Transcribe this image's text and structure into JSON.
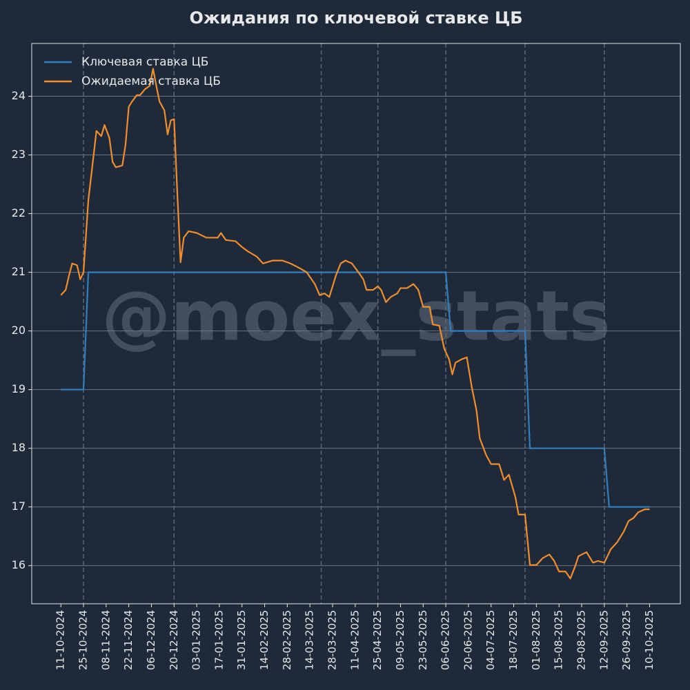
{
  "chart_data": {
    "type": "line",
    "title": "Ожидания по ключевой ставке ЦБ",
    "watermark": "@moex_stats",
    "legend": "upper left",
    "grid": true,
    "xlim": [
      "23-09-2024",
      "29-10-2025"
    ],
    "ylim": [
      15.35,
      24.9
    ],
    "yticks": [
      16,
      17,
      18,
      19,
      20,
      21,
      22,
      23,
      24
    ],
    "xticks": [
      "11-10-2024",
      "25-10-2024",
      "08-11-2024",
      "22-11-2024",
      "06-12-2024",
      "20-12-2024",
      "03-01-2025",
      "17-01-2025",
      "31-01-2025",
      "14-02-2025",
      "28-02-2025",
      "14-03-2025",
      "28-03-2025",
      "11-04-2025",
      "25-04-2025",
      "09-05-2025",
      "23-05-2025",
      "06-06-2025",
      "20-06-2025",
      "04-07-2025",
      "18-07-2025",
      "01-08-2025",
      "15-08-2025",
      "29-08-2025",
      "12-09-2025",
      "26-09-2025",
      "10-10-2025"
    ],
    "vlines": [
      "25-10-2024",
      "20-12-2024",
      "21-03-2025",
      "25-04-2025",
      "06-06-2025",
      "25-07-2025",
      "12-09-2025"
    ],
    "series": [
      {
        "name": "Ключевая ставка ЦБ",
        "color": "#2f7fc1",
        "x": [
          "11-10-2024",
          "25-10-2024",
          "28-10-2024",
          "06-06-2025",
          "09-06-2025",
          "25-07-2025",
          "28-07-2025",
          "12-09-2025",
          "15-09-2025",
          "10-10-2025"
        ],
        "values": [
          19,
          19,
          21,
          21,
          20,
          20,
          18,
          18,
          17,
          17
        ]
      },
      {
        "name": "Ожидаемая ставка ЦБ",
        "color": "#f28e2b",
        "x": [
          "11-10-2024",
          "14-10-2024",
          "16-10-2024",
          "18-10-2024",
          "21-10-2024",
          "23-10-2024",
          "25-10-2024",
          "28-10-2024",
          "30-10-2024",
          "02-11-2024",
          "05-11-2024",
          "07-11-2024",
          "10-11-2024",
          "12-11-2024",
          "14-11-2024",
          "18-11-2024",
          "20-11-2024",
          "22-11-2024",
          "24-11-2024",
          "27-11-2024",
          "29-11-2024",
          "02-12-2024",
          "05-12-2024",
          "07-12-2024",
          "09-12-2024",
          "11-12-2024",
          "14-12-2024",
          "16-12-2024",
          "18-12-2024",
          "20-12-2024",
          "22-12-2024",
          "24-12-2024",
          "26-12-2024",
          "29-12-2024",
          "03-01-2025",
          "09-01-2025",
          "16-01-2025",
          "18-01-2025",
          "21-01-2025",
          "27-01-2025",
          "31-01-2025",
          "04-02-2025",
          "09-02-2025",
          "13-02-2025",
          "19-02-2025",
          "25-02-2025",
          "02-03-2025",
          "07-03-2025",
          "12-03-2025",
          "17-03-2025",
          "20-03-2025",
          "23-03-2025",
          "26-03-2025",
          "30-03-2025",
          "02-04-2025",
          "05-04-2025",
          "09-04-2025",
          "13-04-2025",
          "16-04-2025",
          "18-04-2025",
          "22-04-2025",
          "25-04-2025",
          "27-04-2025",
          "30-04-2025",
          "03-05-2025",
          "07-05-2025",
          "09-05-2025",
          "13-05-2025",
          "17-05-2025",
          "20-05-2025",
          "23-05-2025",
          "27-05-2025",
          "29-05-2025",
          "02-06-2025",
          "05-06-2025",
          "08-06-2025",
          "10-06-2025",
          "12-06-2025",
          "16-06-2025",
          "19-06-2025",
          "22-06-2025",
          "25-06-2025",
          "27-06-2025",
          "01-07-2025",
          "04-07-2025",
          "09-07-2025",
          "12-07-2025",
          "15-07-2025",
          "19-07-2025",
          "21-07-2025",
          "25-07-2025",
          "28-07-2025",
          "01-08-2025",
          "05-08-2025",
          "09-08-2025",
          "12-08-2025",
          "15-08-2025",
          "19-08-2025",
          "22-08-2025",
          "25-08-2025",
          "27-08-2025",
          "01-09-2025",
          "05-09-2025",
          "08-09-2025",
          "12-09-2025",
          "16-09-2025",
          "20-09-2025",
          "24-09-2025",
          "27-09-2025",
          "30-09-2025",
          "03-10-2025",
          "07-10-2025",
          "10-10-2025"
        ],
        "values": [
          20.61,
          20.7,
          20.94,
          21.15,
          21.12,
          20.88,
          21.0,
          22.23,
          22.7,
          23.41,
          23.32,
          23.51,
          23.29,
          22.88,
          22.79,
          22.82,
          23.18,
          23.82,
          23.91,
          24.02,
          24.02,
          24.12,
          24.18,
          24.47,
          24.18,
          23.91,
          23.76,
          23.35,
          23.59,
          23.61,
          22.35,
          21.17,
          21.59,
          21.7,
          21.67,
          21.59,
          21.59,
          21.67,
          21.55,
          21.53,
          21.43,
          21.35,
          21.27,
          21.15,
          21.2,
          21.2,
          21.15,
          21.08,
          21.0,
          20.8,
          20.61,
          20.64,
          20.58,
          20.94,
          21.15,
          21.2,
          21.15,
          21.0,
          20.88,
          20.7,
          20.7,
          20.76,
          20.7,
          20.49,
          20.58,
          20.64,
          20.73,
          20.73,
          20.8,
          20.7,
          20.41,
          20.41,
          20.11,
          20.09,
          19.7,
          19.52,
          19.26,
          19.46,
          19.52,
          19.55,
          19.05,
          18.64,
          18.17,
          17.88,
          17.73,
          17.73,
          17.46,
          17.55,
          17.17,
          16.87,
          16.87,
          16.01,
          16.01,
          16.13,
          16.19,
          16.08,
          15.9,
          15.9,
          15.78,
          15.99,
          16.16,
          16.23,
          16.05,
          16.08,
          16.05,
          16.28,
          16.4,
          16.58,
          16.76,
          16.81,
          16.91,
          16.96,
          16.96
        ]
      }
    ]
  }
}
